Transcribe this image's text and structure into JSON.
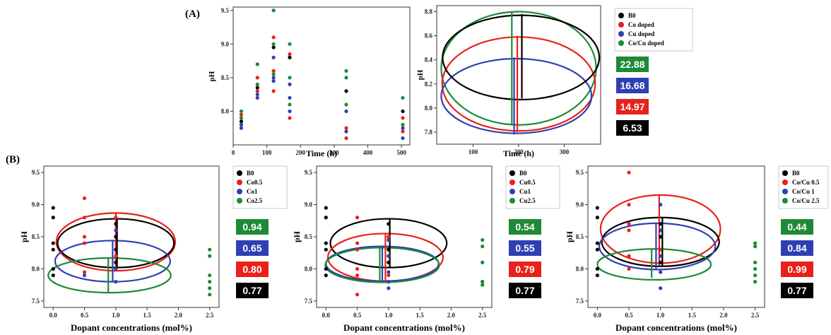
{
  "panel_labels": {
    "a": "(A)",
    "b": "(B)"
  },
  "chart_data": [
    {
      "id": "A1",
      "type": "scatter",
      "xlabel": "Time (h)",
      "ylabel": "pH",
      "xlim": [
        0,
        525
      ],
      "ylim": [
        7.5,
        9.55
      ],
      "xticks": [
        0,
        100,
        200,
        300,
        400,
        500
      ],
      "yticks": [
        8.0,
        8.5,
        9.0,
        9.5
      ],
      "series": [
        {
          "name": "B0",
          "color": "#000000",
          "points": [
            [
              24,
              7.85
            ],
            [
              72,
              8.35
            ],
            [
              120,
              8.95
            ],
            [
              168,
              8.8
            ],
            [
              336,
              8.3
            ],
            [
              504,
              8.0
            ]
          ]
        },
        {
          "name": "Co doped",
          "color": "#e8211a",
          "points": [
            [
              24,
              7.95
            ],
            [
              24,
              7.8
            ],
            [
              72,
              8.5
            ],
            [
              72,
              8.3
            ],
            [
              120,
              9.1
            ],
            [
              120,
              8.6
            ],
            [
              120,
              8.3
            ],
            [
              168,
              8.85
            ],
            [
              168,
              7.9
            ],
            [
              336,
              7.75
            ],
            [
              336,
              7.6
            ],
            [
              504,
              7.9
            ],
            [
              504,
              7.7
            ]
          ]
        },
        {
          "name": "Cu doped",
          "color": "#2f3fb3",
          "points": [
            [
              24,
              7.8
            ],
            [
              24,
              7.75
            ],
            [
              72,
              8.25
            ],
            [
              72,
              8.2
            ],
            [
              120,
              8.8
            ],
            [
              120,
              8.5
            ],
            [
              120,
              8.45
            ],
            [
              168,
              8.4
            ],
            [
              168,
              8.2
            ],
            [
              168,
              8.0
            ],
            [
              336,
              8.0
            ],
            [
              336,
              7.7
            ],
            [
              504,
              7.75
            ],
            [
              504,
              7.6
            ]
          ]
        },
        {
          "name": "Co/Cu doped",
          "color": "#1e8a36",
          "points": [
            [
              24,
              8.0
            ],
            [
              24,
              7.9
            ],
            [
              72,
              8.7
            ],
            [
              72,
              8.4
            ],
            [
              120,
              9.5
            ],
            [
              120,
              9.0
            ],
            [
              120,
              8.55
            ],
            [
              168,
              9.0
            ],
            [
              168,
              8.5
            ],
            [
              168,
              8.1
            ],
            [
              336,
              8.6
            ],
            [
              336,
              8.5
            ],
            [
              336,
              8.1
            ],
            [
              504,
              8.2
            ],
            [
              504,
              7.8
            ]
          ]
        }
      ]
    },
    {
      "id": "A2",
      "type": "ellipse",
      "xlabel": "Time (h)",
      "ylabel": "pH",
      "xlim": [
        20,
        380
      ],
      "ylim": [
        7.7,
        8.85
      ],
      "xticks": [
        100,
        200,
        300
      ],
      "yticks": [
        7.8,
        8.0,
        8.2,
        8.4,
        8.6,
        8.8
      ],
      "legend": [
        "B0",
        "Co doped",
        "Cu doped",
        "Co/Cu doped"
      ],
      "badges": [
        "22.88",
        "16.68",
        "14.97",
        "6.53"
      ],
      "ellipses": [
        {
          "name": "Co/Cu doped",
          "color": "#1e8a36",
          "cx": 200,
          "cy": 8.33,
          "rx": 170,
          "ry": 0.47
        },
        {
          "name": "Co doped",
          "color": "#e8211a",
          "cx": 200,
          "cy": 8.2,
          "rx": 168,
          "ry": 0.39
        },
        {
          "name": "Cu doped",
          "color": "#2f3fb3",
          "cx": 195,
          "cy": 8.1,
          "rx": 165,
          "ry": 0.31
        },
        {
          "name": "B0",
          "color": "#000000",
          "cx": 205,
          "cy": 8.42,
          "rx": 172,
          "ry": 0.35
        }
      ],
      "bars": [
        {
          "color": "#1e8a36",
          "x": 185,
          "y1": 7.86,
          "y2": 8.8
        },
        {
          "color": "#2f3fb3",
          "x": 190,
          "y1": 7.78,
          "y2": 8.42
        },
        {
          "color": "#e8211a",
          "x": 197,
          "y1": 7.8,
          "y2": 8.6
        },
        {
          "color": "#000000",
          "x": 207,
          "y1": 8.08,
          "y2": 8.78
        }
      ]
    },
    {
      "id": "B1",
      "type": "scatter+ellipse",
      "xlabel": "Dopant concentrations (mol%)",
      "ylabel": "pH",
      "xlim": [
        -0.15,
        2.65
      ],
      "ylim": [
        7.4,
        9.6
      ],
      "xticks": [
        0.0,
        0.5,
        1.0,
        1.5,
        2.0,
        2.5
      ],
      "yticks": [
        7.5,
        8.0,
        8.5,
        9.0,
        9.5
      ],
      "legend": [
        "B0",
        "Co0.5",
        "Co1",
        "Co2.5"
      ],
      "badges": [
        "0.94",
        "0.65",
        "0.80",
        "0.77"
      ],
      "series": [
        {
          "name": "B0",
          "color": "#000000",
          "points": [
            [
              0,
              8.95
            ],
            [
              0,
              8.8
            ],
            [
              0,
              8.4
            ],
            [
              0,
              8.3
            ],
            [
              0,
              8.0
            ],
            [
              0,
              7.9
            ],
            [
              1,
              8.7
            ],
            [
              1,
              8.5
            ],
            [
              1,
              8.3
            ],
            [
              1,
              8.1
            ]
          ]
        },
        {
          "name": "Co0.5",
          "color": "#e8211a",
          "points": [
            [
              0.5,
              9.1
            ],
            [
              0.5,
              8.8
            ],
            [
              0.5,
              8.5
            ],
            [
              0.5,
              8.4
            ],
            [
              0.5,
              7.95
            ],
            [
              1,
              8.8
            ],
            [
              1,
              8.2
            ]
          ]
        },
        {
          "name": "Co1",
          "color": "#2f3fb3",
          "points": [
            [
              0.5,
              7.9
            ],
            [
              1,
              8.6
            ],
            [
              1,
              8.0
            ],
            [
              1,
              7.8
            ]
          ]
        },
        {
          "name": "Co2.5",
          "color": "#1e8a36",
          "points": [
            [
              2.5,
              8.3
            ],
            [
              2.5,
              8.2
            ],
            [
              2.5,
              7.9
            ],
            [
              2.5,
              7.8
            ],
            [
              2.5,
              7.7
            ],
            [
              2.5,
              7.6
            ]
          ]
        }
      ],
      "ellipses": [
        {
          "name": "Co0.5",
          "color": "#e8211a",
          "cx": 1.0,
          "cy": 8.42,
          "rx": 0.95,
          "ry": 0.45
        },
        {
          "name": "B0",
          "color": "#000000",
          "cx": 1.0,
          "cy": 8.4,
          "rx": 0.93,
          "ry": 0.38
        },
        {
          "name": "Co1",
          "color": "#2f3fb3",
          "cx": 0.95,
          "cy": 8.12,
          "rx": 0.92,
          "ry": 0.32
        },
        {
          "name": "Co2.5",
          "color": "#1e8a36",
          "cx": 0.9,
          "cy": 7.9,
          "rx": 0.98,
          "ry": 0.27
        }
      ],
      "bars": [
        {
          "color": "#1e8a36",
          "x": 0.88,
          "y1": 7.63,
          "y2": 8.17
        },
        {
          "color": "#2f3fb3",
          "x": 0.95,
          "y1": 7.8,
          "y2": 8.44
        },
        {
          "color": "#e8211a",
          "x": 1.0,
          "y1": 7.97,
          "y2": 8.87
        },
        {
          "color": "#000000",
          "x": 1.02,
          "y1": 8.02,
          "y2": 8.78
        }
      ]
    },
    {
      "id": "B2",
      "type": "scatter+ellipse",
      "xlabel": "Dopant concentrations (mol%)",
      "ylabel": "pH",
      "xlim": [
        -0.15,
        2.65
      ],
      "ylim": [
        7.4,
        9.6
      ],
      "xticks": [
        0.0,
        0.5,
        1.0,
        1.5,
        2.0,
        2.5
      ],
      "yticks": [
        7.5,
        8.0,
        8.5,
        9.0,
        9.5
      ],
      "legend": [
        "B0",
        "Cu0.5",
        "Cu1",
        "Cu2.5"
      ],
      "badges": [
        "0.54",
        "0.55",
        "0.79",
        "0.77"
      ],
      "series": [
        {
          "name": "B0",
          "color": "#000000",
          "points": [
            [
              0,
              8.95
            ],
            [
              0,
              8.8
            ],
            [
              0,
              8.4
            ],
            [
              0,
              8.3
            ],
            [
              0,
              8.0
            ],
            [
              0,
              7.9
            ],
            [
              1,
              8.7
            ],
            [
              1,
              8.5
            ],
            [
              1,
              8.3
            ],
            [
              1,
              8.1
            ]
          ]
        },
        {
          "name": "Cu0.5",
          "color": "#e8211a",
          "points": [
            [
              0.5,
              8.8
            ],
            [
              0.5,
              8.4
            ],
            [
              0.5,
              8.3
            ],
            [
              0.5,
              8.0
            ],
            [
              0.5,
              7.9
            ],
            [
              0.5,
              7.6
            ],
            [
              1,
              8.5
            ],
            [
              1,
              7.9
            ]
          ]
        },
        {
          "name": "Cu1",
          "color": "#2f3fb3",
          "points": [
            [
              1,
              8.45
            ],
            [
              1,
              8.2
            ],
            [
              1,
              7.95
            ],
            [
              1,
              7.8
            ],
            [
              1,
              7.7
            ]
          ]
        },
        {
          "name": "Cu2.5",
          "color": "#1e8a36",
          "points": [
            [
              2.5,
              8.45
            ],
            [
              2.5,
              8.35
            ],
            [
              2.5,
              8.1
            ],
            [
              2.5,
              7.8
            ],
            [
              2.5,
              7.75
            ],
            [
              2.5,
              7.8
            ]
          ]
        }
      ],
      "ellipses": [
        {
          "name": "B0",
          "color": "#000000",
          "cx": 1.0,
          "cy": 8.4,
          "rx": 0.93,
          "ry": 0.38
        },
        {
          "name": "Cu0.5",
          "color": "#e8211a",
          "cx": 0.95,
          "cy": 8.18,
          "rx": 0.92,
          "ry": 0.37
        },
        {
          "name": "Cu1",
          "color": "#2f3fb3",
          "cx": 0.9,
          "cy": 8.08,
          "rx": 0.9,
          "ry": 0.27
        },
        {
          "name": "Cu2.5",
          "color": "#1e8a36",
          "cx": 0.9,
          "cy": 8.06,
          "rx": 0.91,
          "ry": 0.27
        }
      ],
      "bars": [
        {
          "color": "#1e8a36",
          "x": 0.86,
          "y1": 7.8,
          "y2": 8.33
        },
        {
          "color": "#2f3fb3",
          "x": 0.9,
          "y1": 7.81,
          "y2": 8.35
        },
        {
          "color": "#e8211a",
          "x": 0.95,
          "y1": 7.81,
          "y2": 8.55
        },
        {
          "color": "#000000",
          "x": 1.02,
          "y1": 8.02,
          "y2": 8.78
        }
      ]
    },
    {
      "id": "B3",
      "type": "scatter+ellipse",
      "xlabel": "Dopant concentrations (mol%)",
      "ylabel": "pH",
      "xlim": [
        -0.15,
        2.65
      ],
      "ylim": [
        7.4,
        9.6
      ],
      "xticks": [
        0.0,
        0.5,
        1.0,
        1.5,
        2.0,
        2.5
      ],
      "yticks": [
        7.5,
        8.0,
        8.5,
        9.0,
        9.5
      ],
      "legend": [
        "B0",
        "Co/Cu 0.5",
        "Co/Cu 1",
        "Co/Cu 2.5"
      ],
      "badges": [
        "0.44",
        "0.84",
        "0.99",
        "0.77"
      ],
      "series": [
        {
          "name": "B0",
          "color": "#000000",
          "points": [
            [
              0,
              8.95
            ],
            [
              0,
              8.8
            ],
            [
              0,
              8.4
            ],
            [
              0,
              8.3
            ],
            [
              0,
              8.0
            ],
            [
              0,
              7.9
            ],
            [
              1,
              8.7
            ],
            [
              1,
              8.5
            ],
            [
              1,
              8.3
            ],
            [
              1,
              8.1
            ]
          ]
        },
        {
          "name": "Co/Cu 0.5",
          "color": "#e8211a",
          "points": [
            [
              0.5,
              9.5
            ],
            [
              0.5,
              9.0
            ],
            [
              0.5,
              8.7
            ],
            [
              0.5,
              8.6
            ],
            [
              0.5,
              8.2
            ],
            [
              0.5,
              8.0
            ],
            [
              1,
              8.6
            ],
            [
              1,
              8.3
            ]
          ]
        },
        {
          "name": "Co/Cu 1",
          "color": "#2f3fb3",
          "points": [
            [
              1,
              9.0
            ],
            [
              1,
              8.6
            ],
            [
              1,
              8.2
            ],
            [
              1,
              7.95
            ],
            [
              1,
              7.7
            ]
          ]
        },
        {
          "name": "Co/Cu 2.5",
          "color": "#1e8a36",
          "points": [
            [
              2.5,
              8.4
            ],
            [
              2.5,
              8.35
            ],
            [
              2.5,
              8.1
            ],
            [
              2.5,
              8.0
            ],
            [
              2.5,
              7.9
            ],
            [
              2.5,
              7.8
            ]
          ]
        }
      ],
      "ellipses": [
        {
          "name": "Co/Cu 0.5",
          "color": "#e8211a",
          "cx": 1.0,
          "cy": 8.62,
          "rx": 0.95,
          "ry": 0.53
        },
        {
          "name": "B0",
          "color": "#000000",
          "cx": 1.0,
          "cy": 8.42,
          "rx": 0.93,
          "ry": 0.38
        },
        {
          "name": "Co/Cu 1",
          "color": "#2f3fb3",
          "cx": 0.95,
          "cy": 8.35,
          "rx": 0.92,
          "ry": 0.36
        },
        {
          "name": "Co/Cu 2.5",
          "color": "#1e8a36",
          "cx": 0.9,
          "cy": 8.07,
          "rx": 0.9,
          "ry": 0.24
        }
      ],
      "bars": [
        {
          "color": "#1e8a36",
          "x": 0.86,
          "y1": 7.86,
          "y2": 8.3
        },
        {
          "color": "#2f3fb3",
          "x": 0.93,
          "y1": 7.98,
          "y2": 8.7
        },
        {
          "color": "#e8211a",
          "x": 0.98,
          "y1": 8.05,
          "y2": 9.15
        },
        {
          "color": "#000000",
          "x": 1.03,
          "y1": 8.05,
          "y2": 8.8
        }
      ]
    }
  ]
}
